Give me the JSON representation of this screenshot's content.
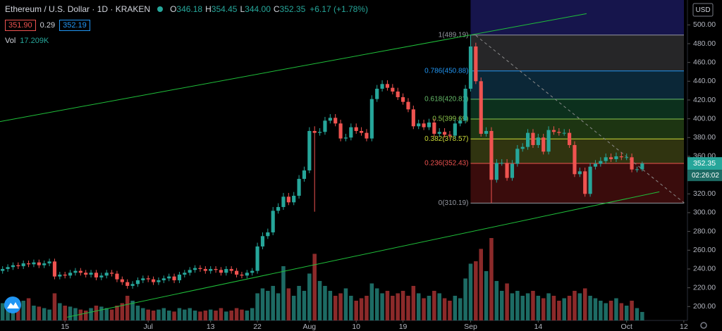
{
  "chart_data": {
    "type": "candlestick",
    "title": "Ethereum / U.S. Dollar · 1D · KRAKEN",
    "ohlc_legend": [
      {
        "key": "O",
        "value": "346.18"
      },
      {
        "key": "H",
        "value": "354.45"
      },
      {
        "key": "L",
        "value": "344.00"
      },
      {
        "key": "C",
        "value": "352.35"
      }
    ],
    "change": "+6.17 (+1.78%)",
    "bid": "351.90",
    "spread": "0.29",
    "ask": "352.19",
    "volume_title": "Vol",
    "volume_label": "17.209K",
    "currency": "USD",
    "last_price": {
      "value": 352.35,
      "label": "352.35",
      "countdown": "02:26:02"
    },
    "up_color": "#26a69a",
    "down_color": "#ef5350",
    "volume_up_color": "#1d6b64",
    "volume_down_color": "#8c2a2a",
    "grid": false,
    "xlim": [
      -0.5,
      131.7
    ],
    "ylim": [
      185.2,
      526.5
    ],
    "xticks": [
      {
        "value": 12,
        "label": "15"
      },
      {
        "value": 28,
        "label": "Jul"
      },
      {
        "value": 40,
        "label": "13"
      },
      {
        "value": 49,
        "label": "22"
      },
      {
        "value": 59,
        "label": "Aug"
      },
      {
        "value": 68,
        "label": "10"
      },
      {
        "value": 77,
        "label": "19"
      },
      {
        "value": 90,
        "label": "Sep"
      },
      {
        "value": 103,
        "label": "14"
      },
      {
        "value": 120,
        "label": "Oct"
      },
      {
        "value": 131,
        "label": "12"
      }
    ],
    "yticks": [
      {
        "value": 200,
        "label": "200.00"
      },
      {
        "value": 220,
        "label": "220.00"
      },
      {
        "value": 240,
        "label": "240.00"
      },
      {
        "value": 260,
        "label": "260.00"
      },
      {
        "value": 280,
        "label": "280.00"
      },
      {
        "value": 300,
        "label": "300.00"
      },
      {
        "value": 320,
        "label": "320.00"
      },
      {
        "value": 340,
        "label": "340.00"
      },
      {
        "value": 360,
        "label": "360.00"
      },
      {
        "value": 380,
        "label": "380.00"
      },
      {
        "value": 400,
        "label": "400.00"
      },
      {
        "value": 420,
        "label": "420.00"
      },
      {
        "value": 440,
        "label": "440.00"
      },
      {
        "value": 460,
        "label": "460.00"
      },
      {
        "value": 480,
        "label": "480.00"
      },
      {
        "value": 500,
        "label": "500.00"
      }
    ],
    "open": [
      238,
      240,
      242,
      244,
      243,
      246,
      245,
      247,
      244,
      246,
      248,
      232,
      234,
      233,
      236,
      238,
      236,
      234,
      236,
      231,
      233,
      236,
      235,
      229,
      226,
      222,
      224,
      228,
      230,
      229,
      226,
      228,
      230,
      232,
      228,
      234,
      236,
      239,
      241,
      240,
      238,
      240,
      239,
      236,
      240,
      238,
      234,
      233,
      236,
      238,
      264,
      275,
      279,
      302,
      306,
      317,
      311,
      318,
      336,
      345,
      387,
      385,
      386,
      398,
      401,
      395,
      379,
      380,
      391,
      387,
      385,
      379,
      421,
      432,
      437,
      433,
      429,
      423,
      418,
      410,
      392,
      395,
      391,
      396,
      384,
      386,
      383,
      382,
      395,
      398,
      432,
      477,
      440,
      384,
      387,
      335,
      353,
      353,
      337,
      352,
      368,
      370,
      385,
      372,
      380,
      365,
      388,
      386,
      385,
      385,
      372,
      341,
      344,
      320,
      349,
      352,
      355,
      359,
      357,
      360,
      359,
      359,
      346,
      346.18
    ],
    "high": [
      243,
      245,
      247,
      247,
      249,
      249,
      250,
      250,
      249,
      251,
      251,
      237,
      237,
      239,
      241,
      241,
      239,
      239,
      239,
      236,
      239,
      239,
      238,
      232,
      229,
      227,
      231,
      233,
      233,
      232,
      231,
      233,
      235,
      235,
      237,
      239,
      242,
      244,
      244,
      243,
      243,
      243,
      242,
      243,
      243,
      241,
      237,
      239,
      241,
      268,
      279,
      283,
      306,
      310,
      321,
      321,
      322,
      340,
      349,
      391,
      392,
      390,
      402,
      405,
      405,
      399,
      384,
      395,
      395,
      391,
      389,
      425,
      436,
      441,
      441,
      437,
      433,
      427,
      422,
      414,
      399,
      399,
      400,
      400,
      390,
      390,
      387,
      399,
      402,
      436,
      489.19,
      481,
      444,
      391,
      391,
      357,
      357,
      357,
      356,
      372,
      374,
      389,
      389,
      384,
      384,
      392,
      392,
      390,
      389,
      389,
      376,
      348,
      348,
      353,
      356,
      359,
      363,
      363,
      364,
      364,
      363,
      363,
      349,
      354.45
    ],
    "low": [
      235,
      237,
      239,
      240,
      240,
      242,
      242,
      241,
      241,
      243,
      229,
      229,
      230,
      230,
      233,
      233,
      231,
      231,
      228,
      228,
      230,
      232,
      226,
      223,
      219,
      219,
      221,
      225,
      226,
      223,
      223,
      225,
      227,
      225,
      225,
      231,
      233,
      236,
      237,
      235,
      235,
      236,
      233,
      233,
      235,
      231,
      230,
      230,
      233,
      235,
      261,
      272,
      276,
      299,
      303,
      308,
      308,
      315,
      333,
      342,
      301,
      382,
      383,
      395,
      392,
      376,
      376,
      377,
      384,
      382,
      376,
      376,
      418,
      429,
      430,
      426,
      420,
      415,
      407,
      389,
      389,
      388,
      388,
      381,
      381,
      380,
      379,
      379,
      392,
      395,
      429,
      437,
      381,
      381,
      310.19,
      332,
      350,
      334,
      334,
      349,
      365,
      367,
      369,
      369,
      362,
      362,
      383,
      382,
      382,
      369,
      338,
      338,
      317,
      317,
      346,
      349,
      352,
      354,
      354,
      356,
      356,
      343,
      343,
      344
    ],
    "close": [
      240,
      242,
      244,
      243,
      246,
      245,
      247,
      244,
      246,
      248,
      232,
      234,
      233,
      236,
      238,
      236,
      234,
      236,
      231,
      233,
      236,
      235,
      229,
      226,
      222,
      224,
      228,
      230,
      229,
      226,
      228,
      230,
      232,
      228,
      234,
      236,
      239,
      241,
      240,
      238,
      240,
      239,
      236,
      240,
      238,
      234,
      233,
      236,
      238,
      264,
      275,
      279,
      302,
      306,
      317,
      311,
      318,
      336,
      345,
      387,
      385,
      386,
      398,
      401,
      395,
      379,
      380,
      391,
      387,
      385,
      379,
      421,
      432,
      437,
      433,
      429,
      423,
      418,
      410,
      392,
      395,
      391,
      396,
      384,
      386,
      383,
      382,
      395,
      398,
      432,
      477,
      440,
      384,
      387,
      335,
      353,
      353,
      337,
      352,
      368,
      370,
      385,
      372,
      380,
      365,
      388,
      386,
      385,
      385,
      372,
      341,
      344,
      320,
      349,
      352,
      355,
      359,
      357,
      360,
      359,
      359,
      346,
      346.18,
      352.35
    ],
    "volume": [
      35,
      30,
      25,
      28,
      40,
      45,
      30,
      28,
      25,
      22,
      55,
      35,
      30,
      28,
      25,
      22,
      20,
      25,
      30,
      28,
      25,
      22,
      30,
      35,
      50,
      40,
      30,
      25,
      22,
      20,
      22,
      25,
      20,
      18,
      25,
      22,
      25,
      20,
      18,
      20,
      22,
      20,
      25,
      18,
      20,
      25,
      22,
      20,
      25,
      55,
      65,
      60,
      70,
      55,
      110,
      65,
      50,
      70,
      60,
      95,
      135,
      80,
      70,
      60,
      50,
      55,
      65,
      50,
      40,
      45,
      50,
      75,
      65,
      55,
      60,
      50,
      55,
      60,
      50,
      70,
      55,
      45,
      50,
      60,
      55,
      45,
      40,
      50,
      45,
      85,
      115,
      120,
      145,
      100,
      167,
      80,
      60,
      75,
      55,
      60,
      50,
      55,
      60,
      50,
      45,
      55,
      50,
      40,
      45,
      50,
      60,
      55,
      65,
      50,
      45,
      40,
      35,
      40,
      45,
      35,
      30,
      40,
      25,
      17.209
    ],
    "lines": [
      {
        "color": "#1fbf3a",
        "dash": false,
        "points": [
          [
            -0.5,
            397
          ],
          [
            112.3,
            512
          ]
        ]
      },
      {
        "color": "#1fbf3a",
        "dash": false,
        "points": [
          [
            12.4,
            188.7
          ],
          [
            126.3,
            322.2
          ]
        ]
      },
      {
        "color": "#8a8a8a",
        "dash": true,
        "points": [
          [
            91,
            488.75
          ],
          [
            131.1,
            310.25
          ]
        ]
      }
    ],
    "fib": {
      "top_fill": "#16154c",
      "levels": [
        {
          "label": "1(489.19)",
          "value": 489.19,
          "color": "#9598a1",
          "fill": "#262628"
        },
        {
          "label": "0.786(450.88)",
          "value": 450.88,
          "color": "#2196f3",
          "fill": "#0b2737"
        },
        {
          "label": "0.618(420.81)",
          "value": 420.81,
          "color": "#66bb6a",
          "fill": "#0c301d"
        },
        {
          "label": "0.5(399.69)",
          "value": 399.69,
          "color": "#8bc34a",
          "fill": "#1d3512"
        },
        {
          "label": "0.382(378.57)",
          "value": 378.57,
          "color": "#cddc39",
          "fill": "#303410"
        },
        {
          "label": "0.236(352.43)",
          "value": 352.43,
          "color": "#ef5350",
          "fill": "#3a0c0c"
        },
        {
          "label": "0(310.19)",
          "value": 310.19,
          "color": "#9598a1"
        }
      ]
    }
  }
}
